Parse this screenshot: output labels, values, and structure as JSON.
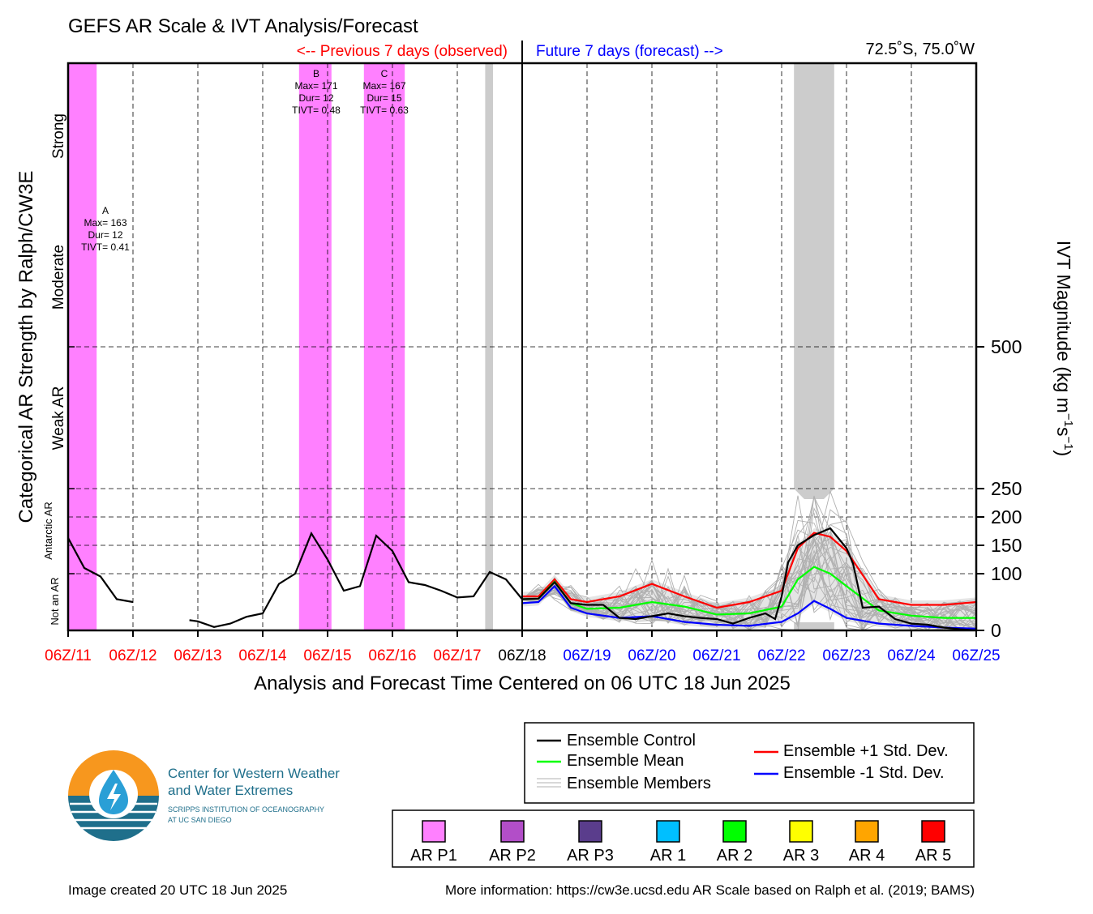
{
  "title": "GEFS AR Scale & IVT Analysis/Forecast",
  "header": {
    "previous": "<-- Previous 7 days (observed)",
    "future": "Future 7 days (forecast) -->",
    "location": "72.5˚S, 75.0˚W"
  },
  "colors": {
    "observed_text": "#ff0000",
    "forecast_text": "#0000ff",
    "control": "#000000",
    "mean": "#00ff00",
    "plus_std": "#ff0000",
    "minus_std": "#0000ff",
    "members": "#b0b0b0",
    "spread_fill": "#d0d0d0",
    "ar_p1": "#ff80ff",
    "uncertain_bar": "#cccccc"
  },
  "left_axis": {
    "title": "Categorical AR Strength by Ralph/CW3E",
    "categories": [
      "Not an AR",
      "Antarctic AR",
      "Weak AR",
      "Moderate",
      "Strong"
    ]
  },
  "right_axis": {
    "title_main": "IVT Magnitude (kg m",
    "title_sup1": "−1",
    "title_mid": "s",
    "title_sup2": "−1",
    "title_end": ")"
  },
  "x_axis": {
    "title": "Analysis and Forecast Time Centered on 06 UTC 18 Jun 2025"
  },
  "events": [
    {
      "id": "A",
      "max": "Max= 163",
      "dur": "Dur= 12",
      "tivt": "TIVT= 0.41"
    },
    {
      "id": "B",
      "max": "Max= 171",
      "dur": "Dur= 12",
      "tivt": "TIVT= 0.48"
    },
    {
      "id": "C",
      "max": "Max= 167",
      "dur": "Dur= 15",
      "tivt": "TIVT= 0.63"
    }
  ],
  "legend": {
    "control": "Ensemble Control",
    "mean": "Ensemble Mean",
    "members": "Ensemble Members",
    "plus_std": "Ensemble +1 Std. Dev.",
    "minus_std": "Ensemble -1 Std. Dev."
  },
  "scale_legend": [
    {
      "label": "AR P1",
      "color": "#ff80ff"
    },
    {
      "label": "AR P2",
      "color": "#b24ec8"
    },
    {
      "label": "AR P3",
      "color": "#5a3d8c"
    },
    {
      "label": "AR 1",
      "color": "#00bfff"
    },
    {
      "label": "AR 2",
      "color": "#00ff00"
    },
    {
      "label": "AR 3",
      "color": "#ffff00"
    },
    {
      "label": "AR 4",
      "color": "#ffa500"
    },
    {
      "label": "AR 5",
      "color": "#ff0000"
    }
  ],
  "logo": {
    "line1": "Center for Western Weather",
    "line2": "and Water Extremes",
    "line3": "SCRIPPS INSTITUTION OF OCEANOGRAPHY",
    "line4": "AT UC SAN DIEGO"
  },
  "footer": {
    "created": "Image created 20 UTC 18 Jun 2025",
    "info": "More information: https://cw3e.ucsd.edu AR Scale based on Ralph et al. (2019; BAMS)"
  },
  "chart_data": {
    "type": "line",
    "x_unit": "days since 06Z/11 Jun 2025",
    "x_range": [
      0,
      14
    ],
    "ylim": [
      0,
      1000
    ],
    "y_ticks": [
      0,
      100,
      150,
      200,
      250,
      500
    ],
    "y_tick_labels": [
      "0",
      "100",
      "150",
      "200",
      "250",
      "500"
    ],
    "y_gridlines": [
      100,
      150,
      200,
      250,
      500
    ],
    "x_ticks": [
      {
        "x": 0,
        "label": "06Z/11",
        "period": "observed"
      },
      {
        "x": 1,
        "label": "06Z/12",
        "period": "observed"
      },
      {
        "x": 2,
        "label": "06Z/13",
        "period": "observed"
      },
      {
        "x": 3,
        "label": "06Z/14",
        "period": "observed"
      },
      {
        "x": 4,
        "label": "06Z/15",
        "period": "observed"
      },
      {
        "x": 5,
        "label": "06Z/16",
        "period": "observed"
      },
      {
        "x": 6,
        "label": "06Z/17",
        "period": "observed"
      },
      {
        "x": 7,
        "label": "06Z/18",
        "period": "now"
      },
      {
        "x": 8,
        "label": "06Z/19",
        "period": "forecast"
      },
      {
        "x": 9,
        "label": "06Z/20",
        "period": "forecast"
      },
      {
        "x": 10,
        "label": "06Z/21",
        "period": "forecast"
      },
      {
        "x": 11,
        "label": "06Z/22",
        "period": "forecast"
      },
      {
        "x": 12,
        "label": "06Z/23",
        "period": "forecast"
      },
      {
        "x": 13,
        "label": "06Z/24",
        "period": "forecast"
      },
      {
        "x": 14,
        "label": "06Z/25",
        "period": "forecast"
      }
    ],
    "ar_p1_spans": [
      [
        0,
        0.44
      ],
      [
        3.56,
        4.06
      ],
      [
        4.56,
        5.19
      ]
    ],
    "uncertain_spans": [
      {
        "x0": 6.43,
        "x1": 6.55,
        "full": true
      },
      {
        "x0": 11.19,
        "x1": 11.81,
        "full": false
      }
    ],
    "observed_segments": [
      [
        [
          0,
          163
        ],
        [
          0.25,
          110
        ],
        [
          0.5,
          95
        ],
        [
          0.75,
          55
        ],
        [
          1,
          50
        ]
      ],
      [
        [
          1.87,
          18
        ],
        [
          2,
          16
        ],
        [
          2.25,
          6
        ],
        [
          2.5,
          12
        ],
        [
          2.75,
          24
        ],
        [
          3,
          30
        ],
        [
          3.25,
          82
        ],
        [
          3.5,
          100
        ],
        [
          3.75,
          171
        ],
        [
          4,
          125
        ],
        [
          4.25,
          70
        ],
        [
          4.5,
          78
        ],
        [
          4.75,
          167
        ],
        [
          5,
          140
        ],
        [
          5.25,
          85
        ],
        [
          5.5,
          80
        ],
        [
          5.75,
          70
        ],
        [
          6,
          58
        ],
        [
          6.25,
          60
        ],
        [
          6.5,
          103
        ],
        [
          6.75,
          90
        ],
        [
          7,
          55
        ]
      ]
    ],
    "series": [
      {
        "name": "Ensemble Control",
        "key": "control",
        "points": [
          [
            7,
            55
          ],
          [
            7.25,
            56
          ],
          [
            7.5,
            85
          ],
          [
            7.75,
            48
          ],
          [
            8,
            45
          ],
          [
            8.25,
            45
          ],
          [
            8.5,
            22
          ],
          [
            8.75,
            20
          ],
          [
            9,
            25
          ],
          [
            9.25,
            30
          ],
          [
            9.5,
            25
          ],
          [
            9.75,
            22
          ],
          [
            10,
            20
          ],
          [
            10.25,
            12
          ],
          [
            10.5,
            22
          ],
          [
            10.75,
            30
          ],
          [
            10.9,
            20
          ],
          [
            11,
            60
          ],
          [
            11.1,
            120
          ],
          [
            11.25,
            150
          ],
          [
            11.5,
            168
          ],
          [
            11.75,
            180
          ],
          [
            12,
            145
          ],
          [
            12.1,
            118
          ],
          [
            12.25,
            40
          ],
          [
            12.5,
            42
          ],
          [
            12.75,
            20
          ],
          [
            13,
            12
          ],
          [
            13.25,
            10
          ],
          [
            13.5,
            5
          ],
          [
            13.75,
            2
          ],
          [
            14,
            0
          ]
        ]
      },
      {
        "name": "Ensemble Mean",
        "key": "mean",
        "points": [
          [
            7,
            55
          ],
          [
            7.25,
            56
          ],
          [
            7.5,
            86
          ],
          [
            7.75,
            48
          ],
          [
            8,
            38
          ],
          [
            8.5,
            40
          ],
          [
            9,
            50
          ],
          [
            9.5,
            42
          ],
          [
            10,
            28
          ],
          [
            10.5,
            30
          ],
          [
            11,
            42
          ],
          [
            11.25,
            90
          ],
          [
            11.5,
            112
          ],
          [
            11.75,
            100
          ],
          [
            12,
            78
          ],
          [
            12.5,
            35
          ],
          [
            13,
            26
          ],
          [
            13.5,
            22
          ],
          [
            14,
            22
          ]
        ]
      },
      {
        "name": "Ensemble +1 Std. Dev.",
        "key": "plus_std",
        "points": [
          [
            7,
            60
          ],
          [
            7.25,
            60
          ],
          [
            7.5,
            90
          ],
          [
            7.75,
            55
          ],
          [
            8,
            50
          ],
          [
            8.5,
            60
          ],
          [
            9,
            82
          ],
          [
            9.5,
            60
          ],
          [
            10,
            40
          ],
          [
            10.5,
            50
          ],
          [
            11,
            70
          ],
          [
            11.25,
            145
          ],
          [
            11.5,
            172
          ],
          [
            11.75,
            165
          ],
          [
            12,
            140
          ],
          [
            12.5,
            55
          ],
          [
            13,
            45
          ],
          [
            13.5,
            45
          ],
          [
            14,
            50
          ]
        ]
      },
      {
        "name": "Ensemble -1 Std. Dev.",
        "key": "minus_std",
        "points": [
          [
            7,
            48
          ],
          [
            7.25,
            50
          ],
          [
            7.5,
            78
          ],
          [
            7.75,
            40
          ],
          [
            8,
            30
          ],
          [
            8.5,
            22
          ],
          [
            9,
            25
          ],
          [
            9.5,
            15
          ],
          [
            10,
            10
          ],
          [
            10.5,
            8
          ],
          [
            11,
            15
          ],
          [
            11.25,
            30
          ],
          [
            11.5,
            52
          ],
          [
            11.75,
            38
          ],
          [
            12,
            22
          ],
          [
            12.5,
            12
          ],
          [
            13,
            8
          ],
          [
            13.5,
            5
          ],
          [
            14,
            3
          ]
        ]
      }
    ],
    "member_count": 30,
    "x_now": 7
  }
}
